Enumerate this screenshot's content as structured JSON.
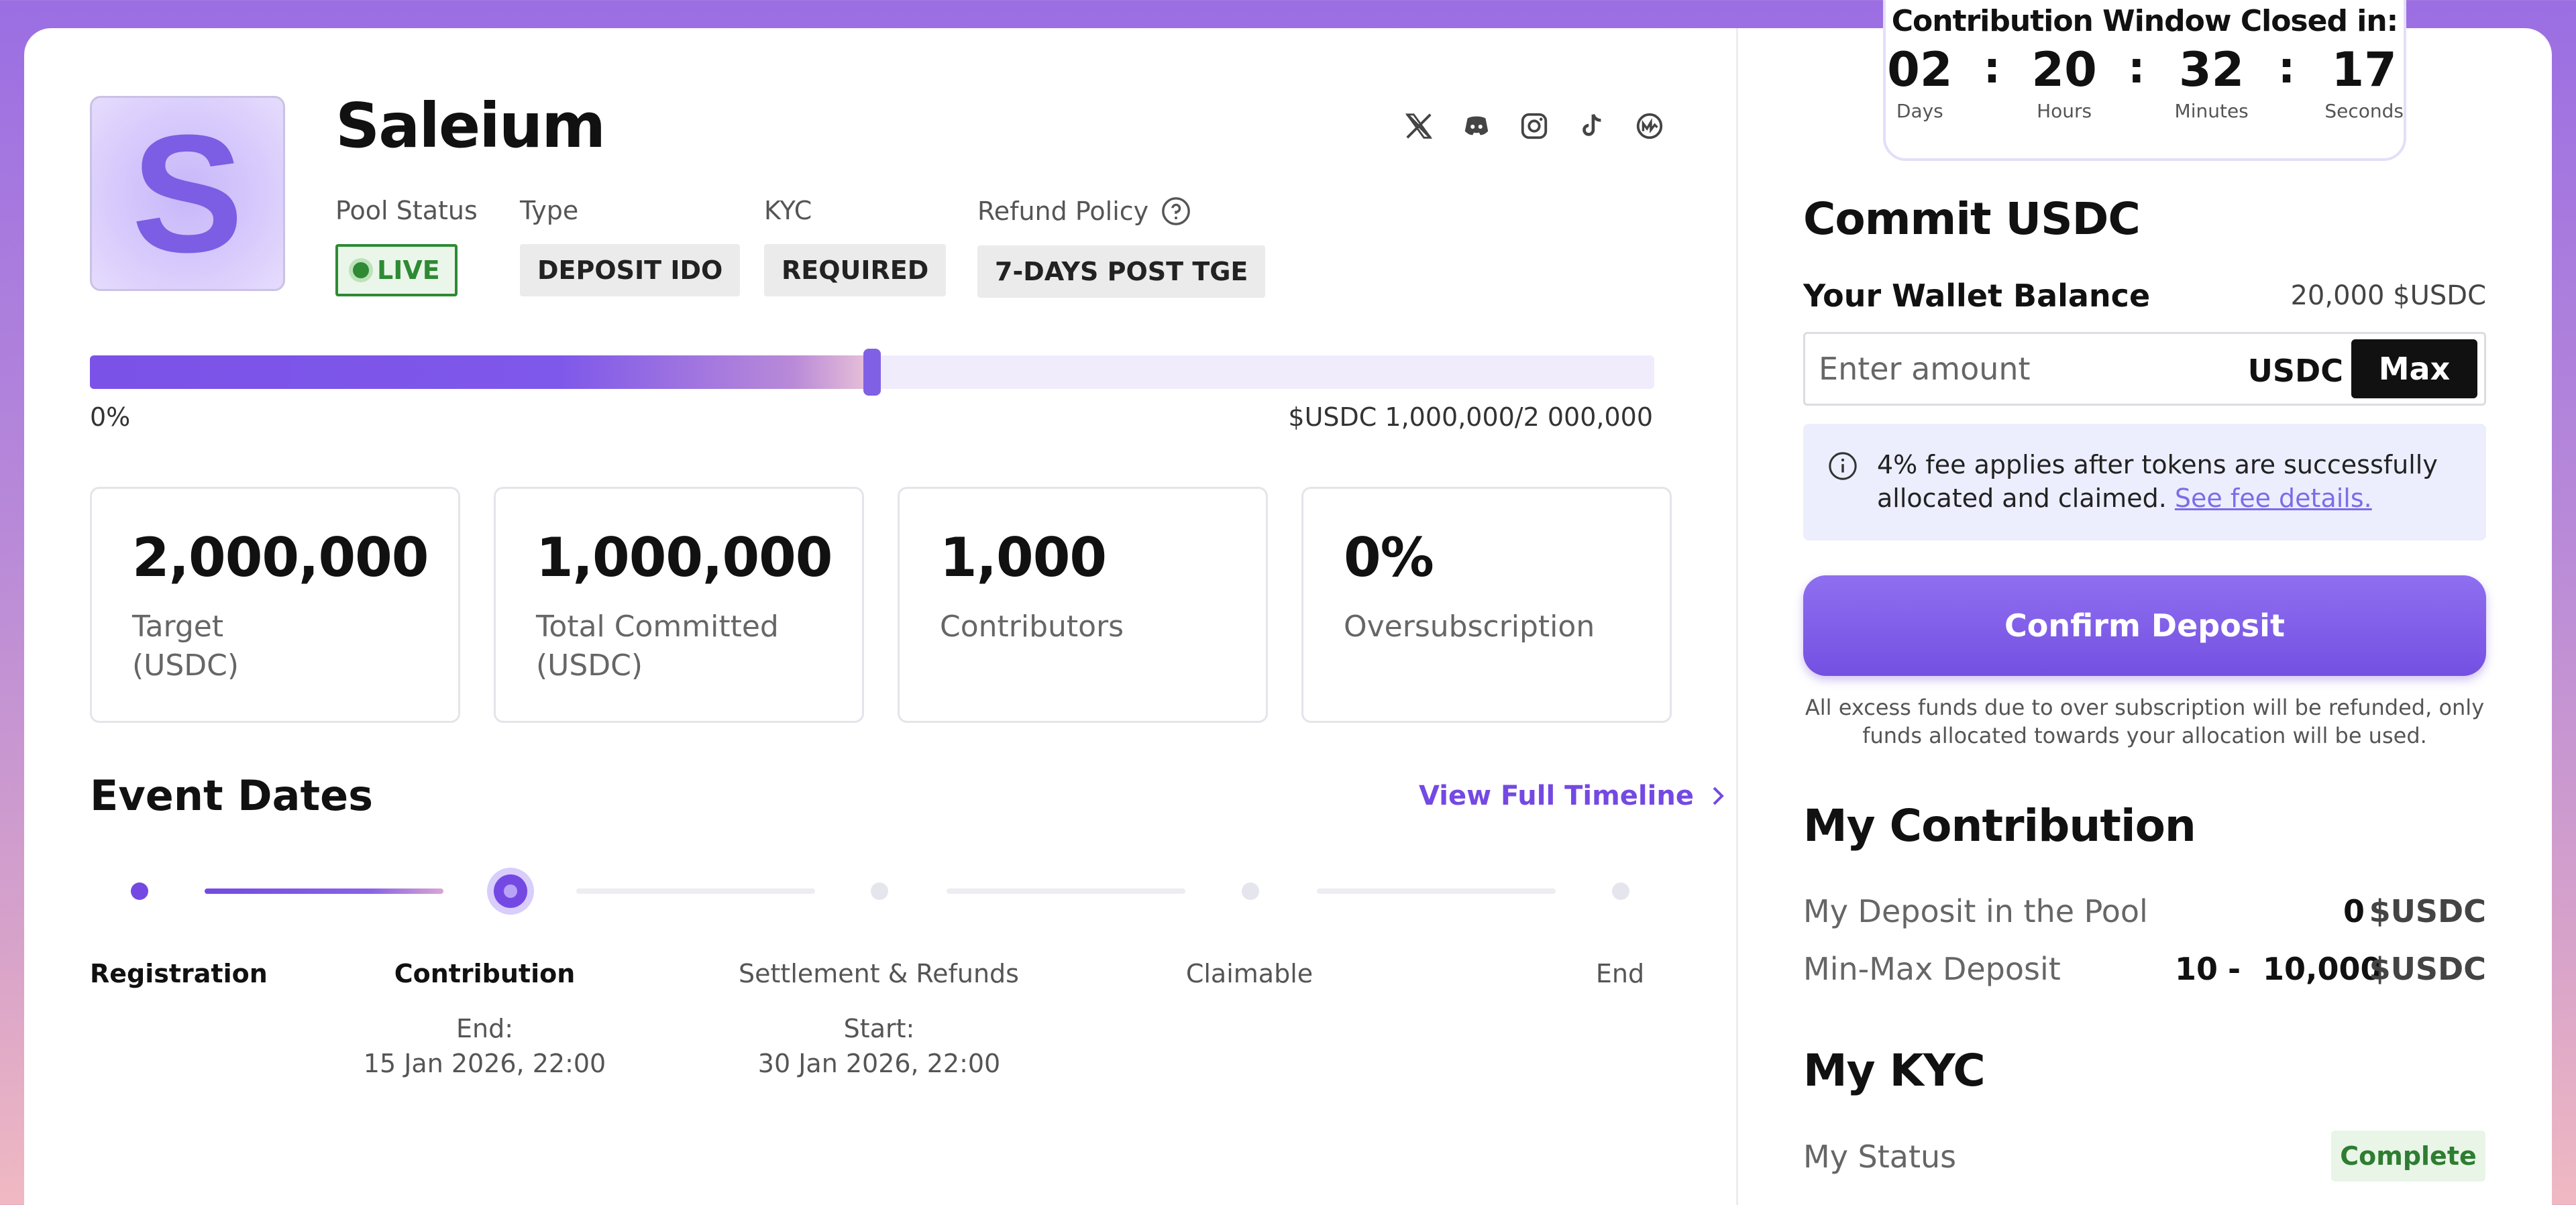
{
  "pool": {
    "logo_letter": "S",
    "name": "Saleium",
    "status_label": "Pool Status",
    "status_value": "LIVE",
    "type_label": "Type",
    "type_value": "DEPOSIT IDO",
    "kyc_label": "KYC",
    "kyc_value": "REQUIRED",
    "refund_label": "Refund Policy",
    "refund_value": "7-DAYS POST TGE"
  },
  "socials": [
    "x-icon",
    "discord-icon",
    "instagram-icon",
    "tiktok-icon",
    "coinmarketcap-icon"
  ],
  "progress": {
    "fraction": 0.5,
    "min_label": "0%",
    "max_label": "$USDC 1,000,000/2 000,000"
  },
  "stats": [
    {
      "value": "2,000,000",
      "label": "Target\n(USDC)"
    },
    {
      "value": "1,000,000",
      "label": "Total Committed\n(USDC)"
    },
    {
      "value": "1,000",
      "label": "Contributors"
    },
    {
      "value": "0%",
      "label": "Oversubscription"
    }
  ],
  "events": {
    "title": "Event Dates",
    "timeline_link": "View Full Timeline",
    "stages": [
      {
        "label": "Registration",
        "sub1": "",
        "sub2": ""
      },
      {
        "label": "Contribution",
        "sub1": "End:",
        "sub2": "15 Jan 2026, 22:00"
      },
      {
        "label": "Settlement & Refunds",
        "sub1": "Start:",
        "sub2": "30 Jan 2026, 22:00"
      },
      {
        "label": "Claimable",
        "sub1": "",
        "sub2": ""
      },
      {
        "label": "End",
        "sub1": "",
        "sub2": ""
      }
    ]
  },
  "countdown": {
    "title": "Contribution Window Closed in:",
    "days": "02",
    "hours": "20",
    "minutes": "32",
    "seconds": "17",
    "days_label": "Days",
    "hours_label": "Hours",
    "minutes_label": "Minutes",
    "seconds_label": "Seconds",
    "sep": ":"
  },
  "commit": {
    "title": "Commit USDC",
    "wallet_label": "Your Wallet Balance",
    "wallet_value": "20,000 $USDC",
    "amount_placeholder": "Enter amount",
    "amount_unit": "USDC",
    "max_label": "Max",
    "fee_text": "4% fee applies after tokens are successfully allocated and claimed.",
    "fee_link": "See fee details.",
    "confirm_label": "Confirm Deposit",
    "refund_note": "All excess funds due to over subscription will be refunded,  only funds allocated towards your allocation will be used."
  },
  "contribution": {
    "title": "My Contribution",
    "deposit_label": "My Deposit in the Pool",
    "deposit_value": "0",
    "deposit_unit": "$USDC",
    "range_label": "Min-Max Deposit",
    "range_min": "10",
    "range_sep": "-",
    "range_max": "10,000",
    "range_unit": "$USDC"
  },
  "kyc": {
    "title": "My KYC",
    "status_label": "My Status",
    "status_value": "Complete"
  },
  "colors": {
    "accent": "#7449e3",
    "live": "#2e8a33",
    "complete": "#2e7d32"
  }
}
